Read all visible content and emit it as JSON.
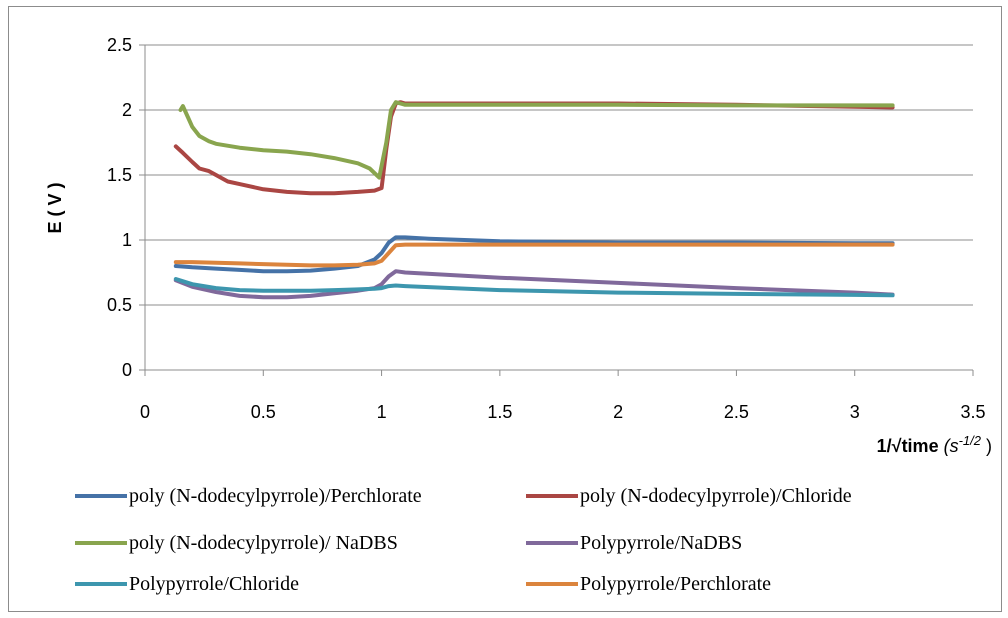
{
  "chart_data": {
    "type": "line",
    "title": "",
    "xlabel": "1/√time",
    "xlabel_unit_base": "s",
    "xlabel_unit_exp": "-1/2",
    "ylabel": "E ( V )",
    "xlim": [
      0,
      3.5
    ],
    "ylim": [
      0,
      2.5
    ],
    "xticks": [
      "0",
      "0.5",
      "1",
      "1.5",
      "2",
      "2.5",
      "3",
      "3.5"
    ],
    "yticks": [
      "0",
      "0.5",
      "1",
      "1.5",
      "2",
      "2.5"
    ],
    "grid": "horizontal",
    "legend_position": "bottom",
    "series": [
      {
        "name": "poly (N-dodecylpyrrole)/Perchlorate",
        "color": "#4572A7",
        "points": [
          [
            0.13,
            0.8
          ],
          [
            0.2,
            0.79
          ],
          [
            0.3,
            0.78
          ],
          [
            0.4,
            0.77
          ],
          [
            0.5,
            0.76
          ],
          [
            0.6,
            0.76
          ],
          [
            0.7,
            0.765
          ],
          [
            0.8,
            0.78
          ],
          [
            0.9,
            0.8
          ],
          [
            0.97,
            0.85
          ],
          [
            1.0,
            0.9
          ],
          [
            1.03,
            0.98
          ],
          [
            1.06,
            1.02
          ],
          [
            1.1,
            1.02
          ],
          [
            1.2,
            1.01
          ],
          [
            1.5,
            0.99
          ],
          [
            2.0,
            0.98
          ],
          [
            2.5,
            0.98
          ],
          [
            3.0,
            0.975
          ],
          [
            3.16,
            0.975
          ]
        ]
      },
      {
        "name": "poly (N-dodecylpyrrole)/Chloride",
        "color": "#AA4643",
        "points": [
          [
            0.13,
            1.72
          ],
          [
            0.16,
            1.67
          ],
          [
            0.2,
            1.6
          ],
          [
            0.23,
            1.55
          ],
          [
            0.27,
            1.53
          ],
          [
            0.3,
            1.5
          ],
          [
            0.35,
            1.45
          ],
          [
            0.4,
            1.43
          ],
          [
            0.5,
            1.39
          ],
          [
            0.6,
            1.37
          ],
          [
            0.7,
            1.36
          ],
          [
            0.8,
            1.36
          ],
          [
            0.9,
            1.37
          ],
          [
            0.97,
            1.38
          ],
          [
            1.0,
            1.4
          ],
          [
            1.02,
            1.7
          ],
          [
            1.04,
            1.95
          ],
          [
            1.06,
            2.05
          ],
          [
            1.08,
            2.06
          ],
          [
            1.1,
            2.05
          ],
          [
            1.5,
            2.05
          ],
          [
            2.0,
            2.05
          ],
          [
            2.5,
            2.04
          ],
          [
            3.0,
            2.025
          ],
          [
            3.16,
            2.02
          ]
        ]
      },
      {
        "name": "poly (N-dodecylpyrrole)/ NaDBS",
        "color": "#89A54E",
        "points": [
          [
            0.15,
            2.0
          ],
          [
            0.16,
            2.03
          ],
          [
            0.18,
            1.95
          ],
          [
            0.2,
            1.87
          ],
          [
            0.23,
            1.8
          ],
          [
            0.27,
            1.76
          ],
          [
            0.3,
            1.74
          ],
          [
            0.4,
            1.71
          ],
          [
            0.5,
            1.69
          ],
          [
            0.6,
            1.68
          ],
          [
            0.7,
            1.66
          ],
          [
            0.8,
            1.63
          ],
          [
            0.9,
            1.59
          ],
          [
            0.95,
            1.55
          ],
          [
            0.99,
            1.48
          ],
          [
            1.02,
            1.75
          ],
          [
            1.04,
            2.0
          ],
          [
            1.06,
            2.06
          ],
          [
            1.08,
            2.05
          ],
          [
            1.1,
            2.04
          ],
          [
            1.5,
            2.04
          ],
          [
            2.0,
            2.04
          ],
          [
            2.5,
            2.035
          ],
          [
            3.0,
            2.035
          ],
          [
            3.16,
            2.035
          ]
        ]
      },
      {
        "name": "Polypyrrole/NaDBS",
        "color": "#80699B",
        "points": [
          [
            0.13,
            0.69
          ],
          [
            0.2,
            0.64
          ],
          [
            0.3,
            0.6
          ],
          [
            0.4,
            0.57
          ],
          [
            0.5,
            0.56
          ],
          [
            0.6,
            0.56
          ],
          [
            0.7,
            0.57
          ],
          [
            0.8,
            0.59
          ],
          [
            0.9,
            0.61
          ],
          [
            0.97,
            0.63
          ],
          [
            1.0,
            0.66
          ],
          [
            1.03,
            0.72
          ],
          [
            1.06,
            0.76
          ],
          [
            1.1,
            0.75
          ],
          [
            1.3,
            0.73
          ],
          [
            1.5,
            0.71
          ],
          [
            2.0,
            0.67
          ],
          [
            2.5,
            0.63
          ],
          [
            3.0,
            0.595
          ],
          [
            3.16,
            0.58
          ]
        ]
      },
      {
        "name": "Polypyrrole/Chloride",
        "color": "#3D96AE",
        "points": [
          [
            0.13,
            0.7
          ],
          [
            0.2,
            0.66
          ],
          [
            0.3,
            0.63
          ],
          [
            0.4,
            0.615
          ],
          [
            0.5,
            0.61
          ],
          [
            0.6,
            0.61
          ],
          [
            0.7,
            0.61
          ],
          [
            0.8,
            0.615
          ],
          [
            0.9,
            0.62
          ],
          [
            0.97,
            0.625
          ],
          [
            1.0,
            0.63
          ],
          [
            1.03,
            0.645
          ],
          [
            1.06,
            0.65
          ],
          [
            1.1,
            0.645
          ],
          [
            1.3,
            0.63
          ],
          [
            1.5,
            0.615
          ],
          [
            2.0,
            0.595
          ],
          [
            2.5,
            0.585
          ],
          [
            3.0,
            0.578
          ],
          [
            3.16,
            0.575
          ]
        ]
      },
      {
        "name": "Polypyrrole/Perchlorate",
        "color": "#DB843D",
        "points": [
          [
            0.13,
            0.83
          ],
          [
            0.2,
            0.83
          ],
          [
            0.3,
            0.825
          ],
          [
            0.4,
            0.82
          ],
          [
            0.5,
            0.815
          ],
          [
            0.6,
            0.81
          ],
          [
            0.7,
            0.805
          ],
          [
            0.8,
            0.805
          ],
          [
            0.9,
            0.81
          ],
          [
            0.97,
            0.82
          ],
          [
            1.0,
            0.84
          ],
          [
            1.03,
            0.9
          ],
          [
            1.06,
            0.96
          ],
          [
            1.1,
            0.965
          ],
          [
            1.5,
            0.965
          ],
          [
            2.0,
            0.965
          ],
          [
            2.5,
            0.965
          ],
          [
            3.0,
            0.965
          ],
          [
            3.16,
            0.965
          ]
        ]
      }
    ]
  }
}
